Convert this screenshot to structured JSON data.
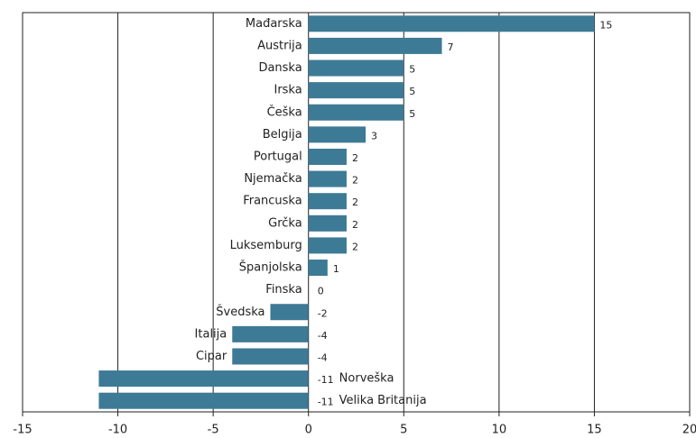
{
  "chart_data": {
    "type": "bar",
    "orientation": "horizontal",
    "categories": [
      "Mađarska",
      "Austrija",
      "Danska",
      "Irska",
      "Češka",
      "Belgija",
      "Portugal",
      "Njemačka",
      "Francuska",
      "Grčka",
      "Luksemburg",
      "Španjolska",
      "Finska",
      "Švedska",
      "Italija",
      "Cipar",
      "Norveška",
      "Velika Britanija"
    ],
    "values": [
      15,
      7,
      5,
      5,
      5,
      3,
      2,
      2,
      2,
      2,
      2,
      1,
      0,
      -2,
      -4,
      -4,
      -11,
      -11
    ],
    "color": "#3d7a96",
    "xlim": [
      -15,
      20
    ],
    "xticks": [
      -15,
      -10,
      -5,
      0,
      5,
      10,
      15,
      20
    ],
    "grid": true
  }
}
